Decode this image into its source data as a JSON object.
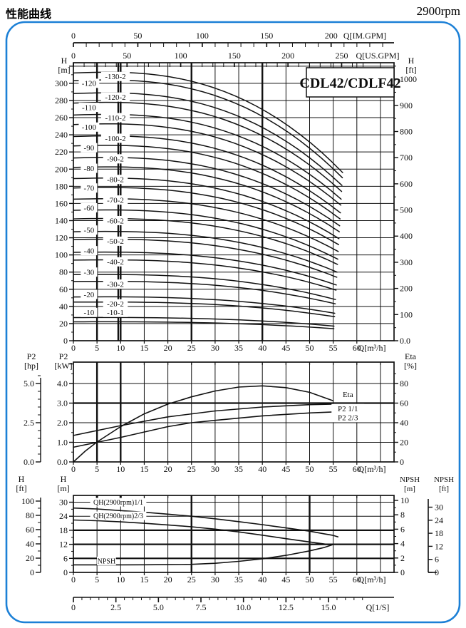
{
  "header": {
    "title": "性能曲线",
    "rpm": "2900rpm"
  },
  "panel": {
    "border_color": "#1c80d6",
    "model_label": "CDL42/CDLF42"
  },
  "chart_data": [
    {
      "type": "line",
      "id": "head-capacity",
      "title": "CDL42/CDLF42",
      "axes": {
        "top_im": {
          "label": "Q[IM.GPM]",
          "tick_labels": [
            0,
            50,
            100,
            150,
            200
          ],
          "gpm_per_m3h": 3.666,
          "minor_step": 10,
          "minor_max": 240
        },
        "top_us": {
          "label": "Q[US.GPM]",
          "tick_labels": [
            0,
            50,
            100,
            150,
            200,
            250
          ],
          "gpm_per_m3h": 4.403,
          "minor_step": 10,
          "minor_max": 270
        },
        "bottom": {
          "label": "Q[m³/h]",
          "tick_labels": [
            0,
            5,
            10,
            15,
            20,
            25,
            30,
            35,
            40,
            45,
            50,
            55,
            60
          ]
        },
        "left": {
          "name": "H",
          "unit": "[m]",
          "tick_labels": [
            0,
            20,
            40,
            60,
            80,
            100,
            120,
            140,
            160,
            180,
            200,
            220,
            240,
            260,
            280,
            300
          ],
          "minor_step": 10,
          "max": 324
        },
        "right": {
          "name": "H",
          "unit": "[ft]",
          "tick_labels": [
            100,
            200,
            300,
            400,
            500,
            600,
            700,
            800,
            900,
            1000
          ],
          "zero_label": "0.0",
          "minor_step": 50
        }
      },
      "grid": {
        "thick_vertical_q": [
          5,
          10,
          25,
          40
        ],
        "label_covered_vertical_q": 9.5,
        "h_step": 20
      },
      "curves": [
        {
          "label": "-130-2",
          "h0": 312,
          "he": 196,
          "col": 2,
          "label_h": 308
        },
        {
          "label": "-120",
          "h0": 303,
          "he": 190,
          "col": 1,
          "label_h": 300
        },
        {
          "label": "-120-2",
          "h0": 288,
          "he": 181,
          "col": 2,
          "label_h": 284
        },
        {
          "label": "-110",
          "h0": 277,
          "he": 174,
          "col": 1,
          "label_h": 272
        },
        {
          "label": "-110-2",
          "h0": 263,
          "he": 165,
          "col": 2,
          "label_h": 260
        },
        {
          "label": "-100",
          "h0": 252,
          "he": 158,
          "col": 1,
          "label_h": 249
        },
        {
          "label": "-100-2",
          "h0": 238,
          "he": 149,
          "col": 2,
          "label_h": 236
        },
        {
          "label": "-90",
          "h0": 227,
          "he": 142,
          "col": 1,
          "label_h": 225
        },
        {
          "label": "-90-2",
          "h0": 213,
          "he": 134,
          "col": 2,
          "label_h": 212
        },
        {
          "label": "-80",
          "h0": 202,
          "he": 127,
          "col": 1,
          "label_h": 201
        },
        {
          "label": "-80-2",
          "h0": 189,
          "he": 119,
          "col": 2,
          "label_h": 188
        },
        {
          "label": "-70",
          "h0": 178,
          "he": 112,
          "col": 1,
          "label_h": 178
        },
        {
          "label": "-70-2",
          "h0": 165,
          "he": 104,
          "col": 2,
          "label_h": 164
        },
        {
          "label": "-60",
          "h0": 152,
          "he": 95,
          "col": 1,
          "label_h": 155
        },
        {
          "label": "-60-2",
          "h0": 142,
          "he": 89,
          "col": 2,
          "label_h": 140
        },
        {
          "label": "-50",
          "h0": 127,
          "he": 80,
          "col": 1,
          "label_h": 129
        },
        {
          "label": "-50-2",
          "h0": 118,
          "he": 74,
          "col": 2,
          "label_h": 116
        },
        {
          "label": "-40",
          "h0": 103,
          "he": 65,
          "col": 1,
          "label_h": 105
        },
        {
          "label": "-40-2",
          "h0": 94,
          "he": 59,
          "col": 2,
          "label_h": 92
        },
        {
          "label": "-30",
          "h0": 77,
          "he": 48,
          "col": 1,
          "label_h": 80
        },
        {
          "label": "-30-2",
          "h0": 69,
          "he": 43,
          "col": 2,
          "label_h": 66
        },
        {
          "label": "-20",
          "h0": 51,
          "he": 32,
          "col": 1,
          "label_h": 54
        },
        {
          "label": "-20-2",
          "h0": 45,
          "he": 28,
          "col": 2,
          "label_h": 43
        },
        {
          "label": "-10",
          "h0": 27,
          "he": 17,
          "col": 1,
          "label_h": 33
        },
        {
          "label": "-10-1",
          "h0": 22,
          "he": 14,
          "col": 2,
          "label_h": 33
        }
      ]
    },
    {
      "type": "line",
      "id": "power-efficiency",
      "axes": {
        "left_outer": {
          "name": "P2",
          "unit": "[hp]",
          "ticks": [
            {
              "t": "0.0",
              "kw": 0
            },
            {
              "t": "2.5",
              "kw": 2
            },
            {
              "t": "5.0",
              "kw": 4
            }
          ],
          "minor_step_kw": 0.4
        },
        "left_inner": {
          "name": "P2",
          "unit": "[kW]",
          "ticks": [
            {
              "t": "0.0",
              "kw": 0
            },
            {
              "t": "1.0",
              "kw": 1
            },
            {
              "t": "2.0",
              "kw": 2
            },
            {
              "t": "3.0",
              "kw": 3
            },
            {
              "t": "4.0",
              "kw": 4
            }
          ],
          "minor_step": 0.5
        },
        "right": {
          "name": "Eta",
          "unit": "[%]",
          "tick_labels": [
            0,
            20,
            40,
            60,
            80
          ],
          "minor_step": 10,
          "pct_per_kw": 20
        },
        "bottom": {
          "label": "Q[m³/h]",
          "tick_labels": [
            0,
            5,
            10,
            15,
            20,
            25,
            30,
            35,
            40,
            45,
            50,
            55,
            60
          ]
        }
      },
      "grid": {
        "thick_vertical_q": [
          5,
          10
        ],
        "thick_horizontal_kw": [
          3
        ]
      },
      "series": [
        {
          "name": "Eta",
          "label": "Eta",
          "label_pos": {
            "q": 56,
            "kw": 3.45
          },
          "points_kw": [
            [
              0,
              0
            ],
            [
              2.5,
              0.55
            ],
            [
              5,
              1.02
            ],
            [
              10,
              1.8
            ],
            [
              15,
              2.45
            ],
            [
              20,
              2.95
            ],
            [
              25,
              3.32
            ],
            [
              30,
              3.62
            ],
            [
              35,
              3.82
            ],
            [
              40,
              3.88
            ],
            [
              45,
              3.79
            ],
            [
              50,
              3.55
            ],
            [
              55,
              3.12
            ]
          ]
        },
        {
          "name": "P2 1/1",
          "label": "P2  1/1",
          "label_pos": {
            "q": 56,
            "kw": 2.72
          },
          "points_kw": [
            [
              0,
              1.35
            ],
            [
              5,
              1.6
            ],
            [
              10,
              1.85
            ],
            [
              20,
              2.3
            ],
            [
              30,
              2.6
            ],
            [
              40,
              2.8
            ],
            [
              50,
              2.92
            ],
            [
              55,
              2.95
            ]
          ]
        },
        {
          "name": "P2 2/3",
          "label": "P2  2/3",
          "label_pos": {
            "q": 56,
            "kw": 2.26
          },
          "points_kw": [
            [
              0,
              0.75
            ],
            [
              5,
              1.0
            ],
            [
              10,
              1.25
            ],
            [
              20,
              1.8
            ],
            [
              25,
              2.0
            ],
            [
              30,
              2.12
            ],
            [
              40,
              2.35
            ],
            [
              50,
              2.5
            ],
            [
              55,
              2.55
            ]
          ]
        }
      ]
    },
    {
      "type": "line",
      "id": "qh-npsh",
      "axes": {
        "left_outer": {
          "name": "H",
          "unit": "[ft]",
          "tick_labels": [
            0,
            20,
            40,
            60,
            80,
            100
          ],
          "minor_step": 10
        },
        "left_inner": {
          "name": "H",
          "unit": "[m]",
          "tick_labels": [
            0,
            6,
            12,
            18,
            24,
            30
          ],
          "minor_step": 3,
          "max": 32.9
        },
        "right_inner": {
          "name": "NPSH",
          "unit": "[m]",
          "tick_labels": [
            0,
            2,
            4,
            6,
            8,
            10
          ],
          "minor_step": 1
        },
        "right_outer": {
          "name": "NPSH",
          "unit": "[ft]",
          "tick_labels": [
            0,
            6,
            12,
            18,
            24,
            30
          ]
        },
        "bottom": {
          "label": "Q[m³/h]",
          "tick_labels": [
            0,
            5,
            10,
            15,
            20,
            25,
            30,
            35,
            40,
            45,
            50,
            55,
            60
          ]
        },
        "bottom_ls": {
          "label": "Q[1/S]",
          "tick_labels": [
            "0",
            "2.5",
            "5.0",
            "7.5",
            "10.0",
            "12.5",
            "15.0"
          ],
          "m3h_per_ls": 3.6,
          "minor_step": 0.5,
          "minor_max": 17
        }
      },
      "grid": {
        "thick_vertical_q": [
          25,
          50
        ],
        "thick_stub_q": [
          5,
          10
        ],
        "thick_horizontal_m": [
          6,
          12,
          18
        ]
      },
      "series": [
        {
          "name": "QH(2900rpm)1/1",
          "label": "QH(2900rpm)1/1",
          "scale": "h",
          "label_pos": {
            "q": 9.5,
            "m": 30
          },
          "points": [
            [
              0,
              27.5
            ],
            [
              5,
              27.1
            ],
            [
              10,
              26.4
            ],
            [
              15,
              25.7
            ],
            [
              20,
              24.9
            ],
            [
              25,
              24.0
            ],
            [
              30,
              22.9
            ],
            [
              35,
              21.7
            ],
            [
              40,
              20.4
            ],
            [
              45,
              19.0
            ],
            [
              50,
              17.6
            ],
            [
              53,
              16.5
            ],
            [
              55,
              15.8
            ],
            [
              56,
              15.2
            ]
          ]
        },
        {
          "name": "QH(2900rpm)2/3",
          "label": "QH(2900rpm)2/3",
          "scale": "h",
          "label_pos": {
            "q": 9.5,
            "m": 24.2
          },
          "points": [
            [
              0,
              22.4
            ],
            [
              5,
              22.1
            ],
            [
              10,
              21.6
            ],
            [
              15,
              21.0
            ],
            [
              20,
              20.3
            ],
            [
              25,
              19.5
            ],
            [
              30,
              18.5
            ],
            [
              35,
              17.3
            ],
            [
              40,
              15.9
            ],
            [
              45,
              14.4
            ],
            [
              50,
              13.0
            ],
            [
              54,
              11.9
            ]
          ]
        },
        {
          "name": "NPSH",
          "label": "NPSH",
          "scale": "npsh",
          "label_pos": {
            "q": 7,
            "m": 4.9
          },
          "points": [
            [
              0,
              1.05
            ],
            [
              5,
              1.05
            ],
            [
              10,
              1.05
            ],
            [
              15,
              1.06
            ],
            [
              20,
              1.08
            ],
            [
              25,
              1.12
            ],
            [
              30,
              1.27
            ],
            [
              35,
              1.53
            ],
            [
              40,
              1.89
            ],
            [
              45,
              2.37
            ],
            [
              50,
              2.99
            ],
            [
              53,
              3.45
            ],
            [
              55,
              3.87
            ]
          ]
        }
      ]
    }
  ]
}
